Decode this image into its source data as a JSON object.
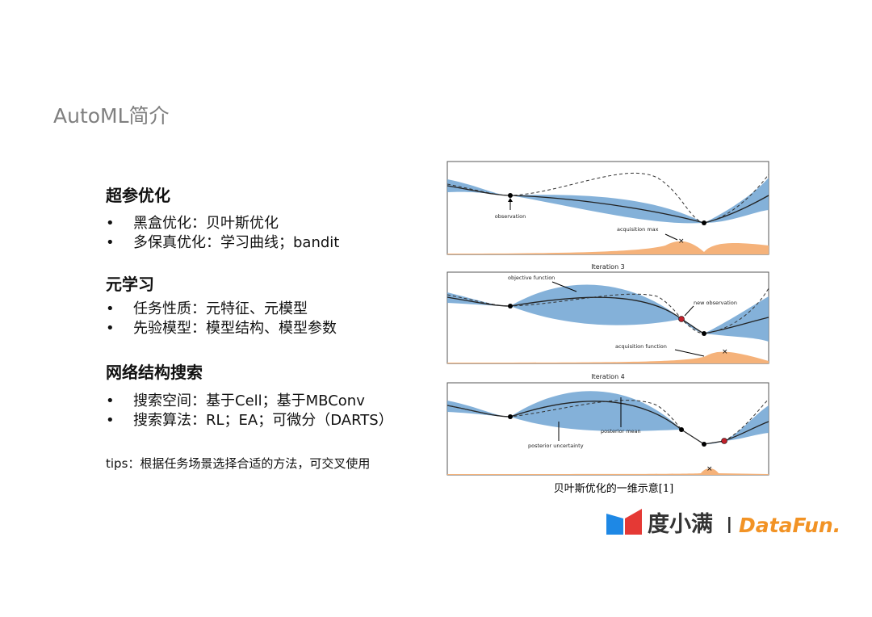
{
  "title": "AutoML简介",
  "sections": [
    {
      "heading": "超参优化",
      "bullets": [
        "黑盒优化：贝叶斯优化",
        "多保真优化：学习曲线；bandit"
      ]
    },
    {
      "heading": "元学习",
      "bullets": [
        "任务性质：元特征、元模型",
        "先验模型：模型结构、模型参数"
      ]
    },
    {
      "heading": "网络结构搜索",
      "bullets": [
        "搜索空间：基于Cell；基于MBConv",
        "搜索算法：RL；EA；可微分（DARTS）"
      ]
    }
  ],
  "tips": "tips：根据任务场景选择合适的方法，可交叉使用",
  "figure": {
    "panels": [
      {
        "annotations": [
          "observation",
          "acquisition max"
        ]
      },
      {
        "title": "Iteration 3",
        "annotations": [
          "objective function",
          "new observation",
          "acquisition function"
        ]
      },
      {
        "title": "Iteration 4",
        "annotations": [
          "posterior mean",
          "posterior uncertainty"
        ]
      }
    ],
    "caption": "贝叶斯优化的一维示意[1]"
  },
  "logo": {
    "brand": "度小满",
    "partner": "DataFun."
  }
}
